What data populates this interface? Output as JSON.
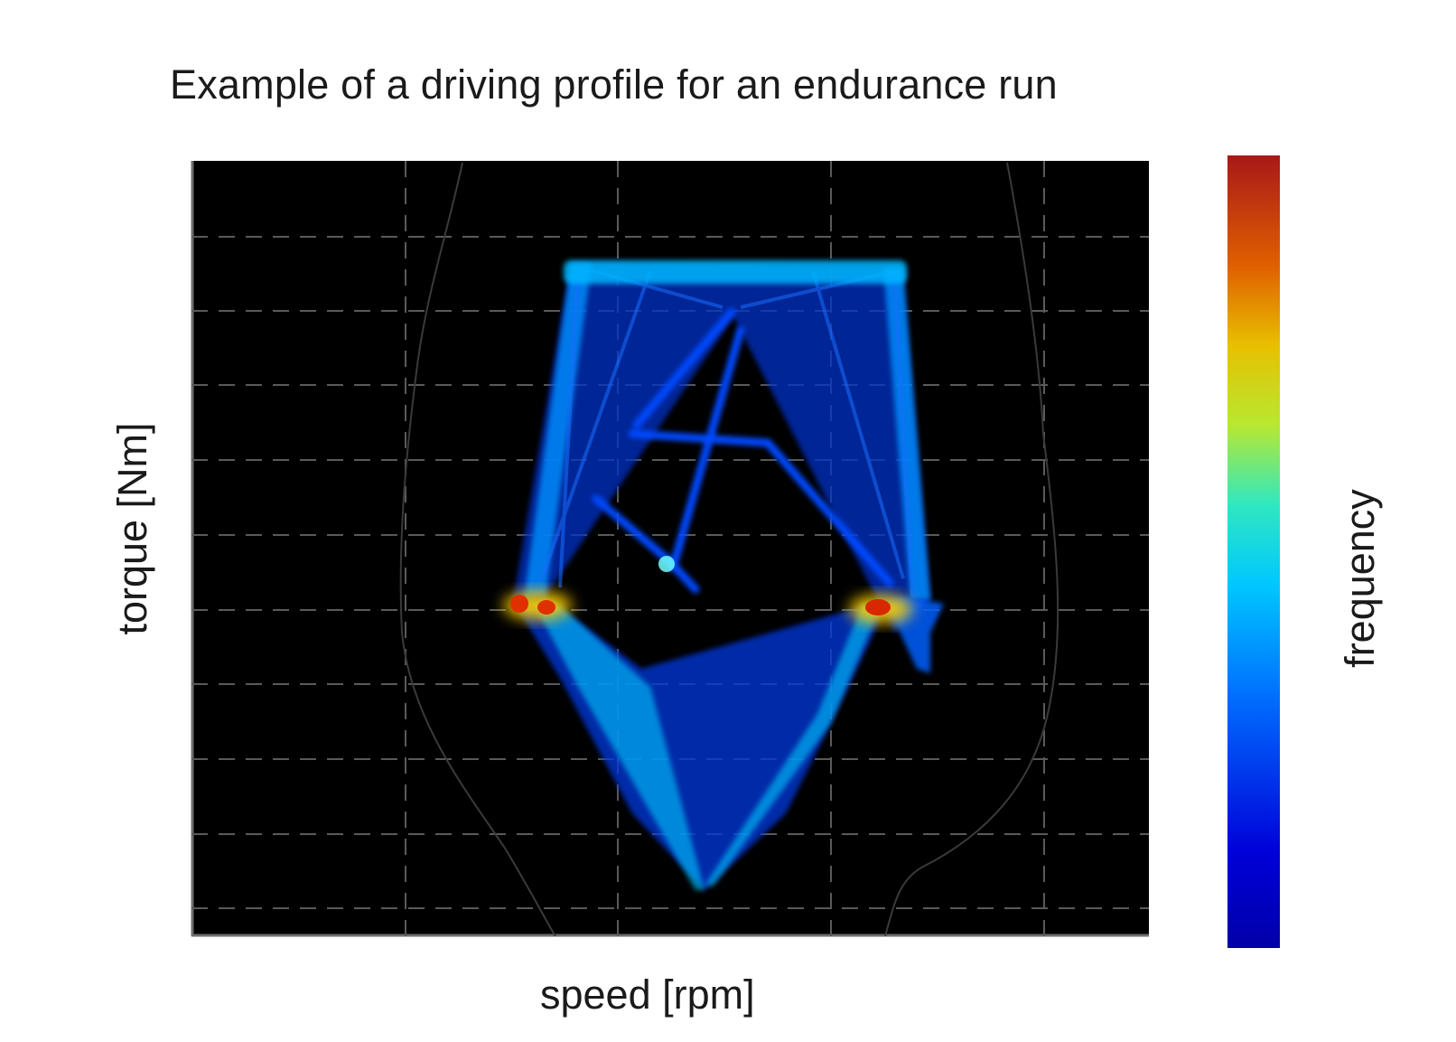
{
  "chart_data": {
    "type": "heatmap",
    "title": "Example of a driving profile for an endurance run",
    "xlabel": "speed [rpm]",
    "ylabel": "torque [Nm]",
    "colorbar_label": "frequency",
    "colormap": "jet",
    "colormap_stops": [
      "#0000a8",
      "#0000d8",
      "#0070ff",
      "#00c8ff",
      "#30e8c0",
      "#b8e830",
      "#e8c000",
      "#e06000",
      "#a81818"
    ],
    "plot_background": "#000000",
    "grid": true,
    "grid_style": "dashed",
    "x_ticks_shown": false,
    "y_ticks_shown": false,
    "hotspots": [
      "low-speed mid-torque",
      "high-speed mid-torque"
    ]
  }
}
